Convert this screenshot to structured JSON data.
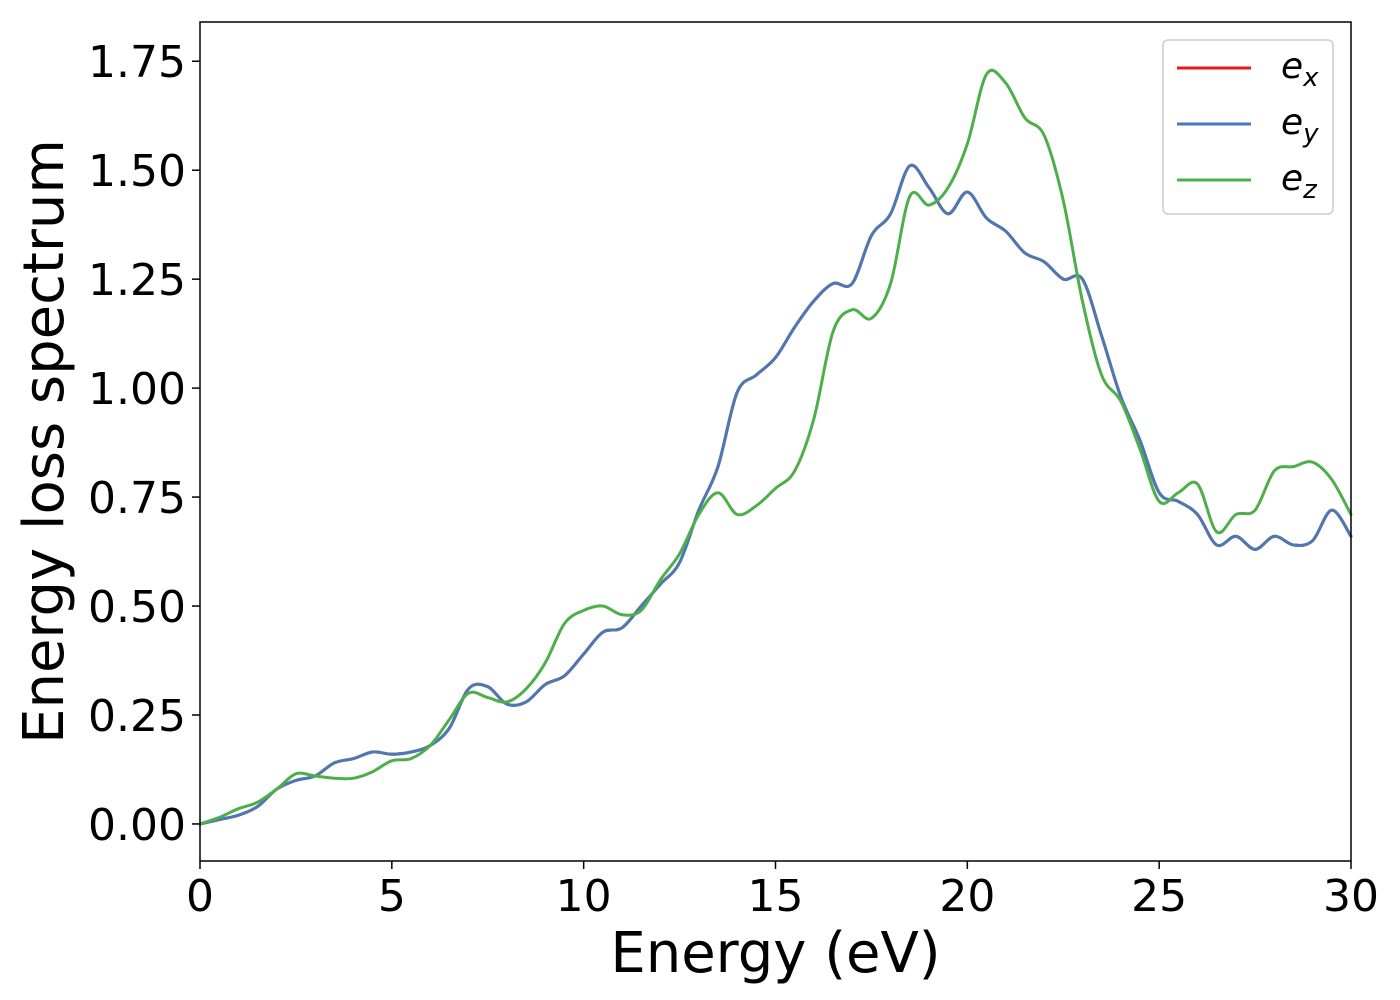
{
  "chart_data": {
    "type": "line",
    "xlabel": "Energy (eV)",
    "ylabel": "Energy loss spectrum",
    "xlim": [
      0,
      30
    ],
    "ylim": [
      -0.085,
      1.84
    ],
    "xticks": [
      0,
      5,
      10,
      15,
      20,
      25,
      30
    ],
    "xtick_labels": [
      "0",
      "5",
      "10",
      "15",
      "20",
      "25",
      "30"
    ],
    "yticks": [
      0.0,
      0.25,
      0.5,
      0.75,
      1.0,
      1.25,
      1.5,
      1.75
    ],
    "ytick_labels": [
      "0.00",
      "0.25",
      "0.50",
      "0.75",
      "1.00",
      "1.25",
      "1.50",
      "1.75"
    ],
    "grid": false,
    "legend_position": "top-right",
    "x": [
      0,
      0.5,
      1,
      1.5,
      2,
      2.5,
      3,
      3.5,
      4,
      4.5,
      5,
      5.5,
      6,
      6.5,
      7,
      7.5,
      8,
      8.5,
      9,
      9.5,
      10,
      10.5,
      11,
      11.5,
      12,
      12.5,
      13,
      13.5,
      14,
      14.5,
      15,
      15.5,
      16,
      16.5,
      17,
      17.5,
      18,
      18.5,
      19,
      19.5,
      20,
      20.5,
      21,
      21.5,
      22,
      22.5,
      23,
      23.5,
      24,
      24.5,
      25,
      25.5,
      26,
      26.5,
      27,
      27.5,
      28,
      28.5,
      29,
      29.5,
      30
    ],
    "series": [
      {
        "name": "e",
        "subscript": "x",
        "color": "#e41a1c",
        "values": [
          0.0,
          0.01,
          0.02,
          0.04,
          0.08,
          0.1,
          0.11,
          0.14,
          0.15,
          0.165,
          0.16,
          0.165,
          0.18,
          0.22,
          0.31,
          0.315,
          0.275,
          0.28,
          0.32,
          0.34,
          0.39,
          0.44,
          0.45,
          0.5,
          0.55,
          0.6,
          0.72,
          0.82,
          0.99,
          1.03,
          1.07,
          1.14,
          1.2,
          1.24,
          1.24,
          1.35,
          1.4,
          1.51,
          1.46,
          1.4,
          1.45,
          1.39,
          1.36,
          1.31,
          1.29,
          1.25,
          1.25,
          1.12,
          0.98,
          0.88,
          0.76,
          0.74,
          0.71,
          0.64,
          0.66,
          0.63,
          0.66,
          0.64,
          0.65,
          0.72,
          0.66
        ]
      },
      {
        "name": "e",
        "subscript": "y",
        "color": "#4a7ab5",
        "values": [
          0.0,
          0.01,
          0.02,
          0.04,
          0.08,
          0.1,
          0.11,
          0.14,
          0.15,
          0.165,
          0.16,
          0.165,
          0.18,
          0.22,
          0.31,
          0.315,
          0.275,
          0.28,
          0.32,
          0.34,
          0.39,
          0.44,
          0.45,
          0.5,
          0.55,
          0.6,
          0.72,
          0.82,
          0.99,
          1.03,
          1.07,
          1.14,
          1.2,
          1.24,
          1.24,
          1.35,
          1.4,
          1.51,
          1.46,
          1.4,
          1.45,
          1.39,
          1.36,
          1.31,
          1.29,
          1.25,
          1.25,
          1.12,
          0.98,
          0.88,
          0.76,
          0.74,
          0.71,
          0.64,
          0.66,
          0.63,
          0.66,
          0.64,
          0.65,
          0.72,
          0.66
        ]
      },
      {
        "name": "e",
        "subscript": "z",
        "color": "#4daf4a",
        "values": [
          0.0,
          0.015,
          0.035,
          0.05,
          0.08,
          0.115,
          0.11,
          0.105,
          0.105,
          0.12,
          0.145,
          0.15,
          0.18,
          0.24,
          0.3,
          0.29,
          0.28,
          0.31,
          0.37,
          0.46,
          0.49,
          0.5,
          0.48,
          0.49,
          0.56,
          0.62,
          0.71,
          0.76,
          0.71,
          0.73,
          0.77,
          0.81,
          0.93,
          1.13,
          1.18,
          1.16,
          1.24,
          1.44,
          1.42,
          1.46,
          1.56,
          1.72,
          1.7,
          1.62,
          1.58,
          1.43,
          1.2,
          1.03,
          0.97,
          0.86,
          0.74,
          0.76,
          0.78,
          0.67,
          0.71,
          0.72,
          0.81,
          0.82,
          0.83,
          0.79,
          0.71
        ]
      }
    ]
  }
}
